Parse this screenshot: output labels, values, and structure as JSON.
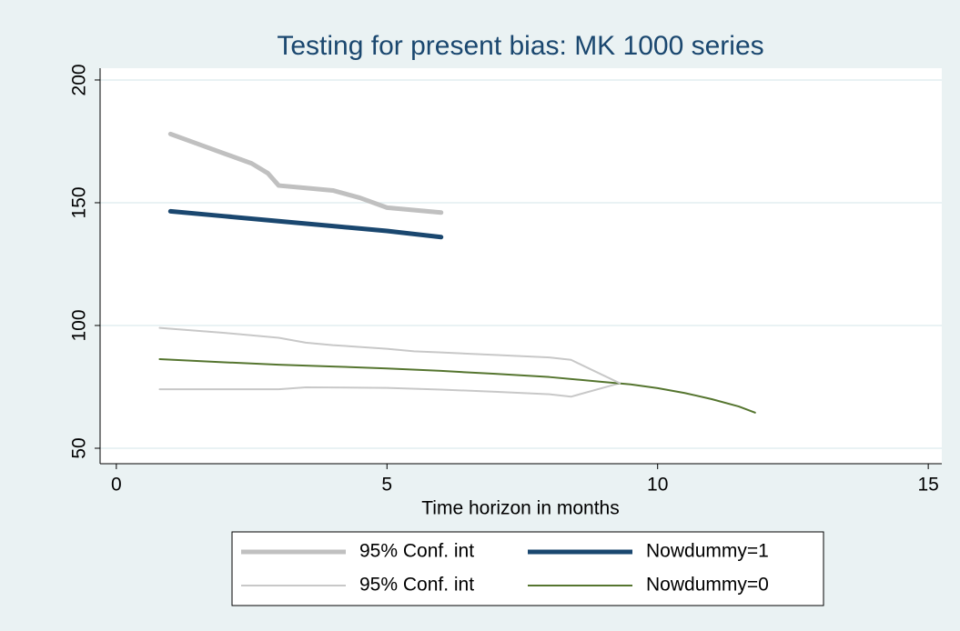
{
  "chart_data": {
    "type": "line",
    "title": "Testing for present bias: MK 1000 series",
    "x_label": "Time horizon in months",
    "xlim": [
      -0.3,
      15.25
    ],
    "xticks": [
      0,
      5,
      10,
      15
    ],
    "ylim": [
      43.7,
      204.8
    ],
    "yticks": [
      50,
      100,
      150,
      200
    ],
    "grid": true,
    "series": [
      {
        "name": "95% Conf. int",
        "color": "#c0c0c0",
        "width": 5,
        "x": [
          1,
          1.5,
          2,
          2.5,
          2.8,
          3,
          3.5,
          4,
          4.5,
          5,
          6
        ],
        "values": [
          178,
          174,
          170,
          166,
          162,
          157,
          156,
          155,
          152,
          148,
          146
        ]
      },
      {
        "name": "Nowdummy=1",
        "color": "#1a476f",
        "width": 5,
        "x": [
          1,
          2,
          3,
          4,
          5,
          6
        ],
        "values": [
          146.5,
          144.5,
          142.5,
          140.5,
          138.5,
          136
        ]
      },
      {
        "name": "95% Conf. int",
        "color": "#c8c8c8",
        "width": 2,
        "x": [
          0.8,
          2,
          3,
          3.5,
          4,
          5,
          5.5,
          6,
          7,
          8,
          8.4,
          9.3
        ],
        "values": [
          99,
          97,
          95,
          93,
          92,
          90.5,
          89.5,
          89,
          88,
          87,
          86,
          76.5
        ]
      },
      {
        "name": "Nowdummy=0",
        "color": "#55752f",
        "width": 2,
        "x": [
          0.8,
          2,
          3,
          4,
          5,
          6,
          7,
          8,
          9,
          9.5,
          10,
          10.5,
          11,
          11.5,
          11.8
        ],
        "values": [
          86.3,
          85,
          84,
          83.3,
          82.5,
          81.5,
          80.3,
          79,
          77,
          76,
          74.5,
          72.5,
          70,
          67,
          64.5
        ]
      },
      {
        "color": "#c8c8c8",
        "width": 2,
        "x": [
          0.8,
          1.5,
          3,
          3.5,
          5,
          6,
          7,
          8,
          8.4,
          9.3
        ],
        "values": [
          74,
          74,
          74,
          74.8,
          74.6,
          73.9,
          73,
          72,
          71,
          76.5
        ]
      }
    ]
  }
}
